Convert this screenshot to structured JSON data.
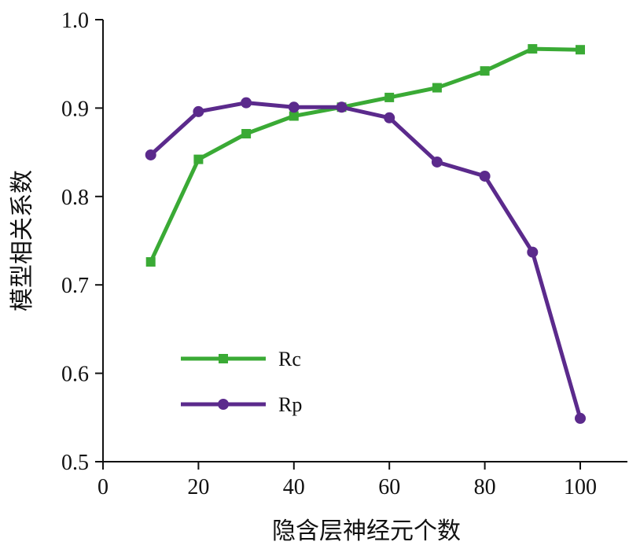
{
  "chart_data": {
    "type": "line",
    "xlabel": "隐含层神经元个数",
    "ylabel": "模型相关系数",
    "xlim": [
      0,
      110
    ],
    "ylim": [
      0.5,
      1.0
    ],
    "x_ticks": [
      "0",
      "20",
      "40",
      "60",
      "80",
      "100"
    ],
    "y_ticks": [
      "0.5",
      "0.6",
      "0.7",
      "0.8",
      "0.9",
      "1.0"
    ],
    "x": [
      10,
      20,
      30,
      40,
      50,
      60,
      70,
      80,
      90,
      100
    ],
    "series": [
      {
        "name": "Rc",
        "color": "#3aaa35",
        "marker": "square",
        "values": [
          0.726,
          0.842,
          0.871,
          0.891,
          0.901,
          0.912,
          0.923,
          0.942,
          0.967,
          0.966
        ]
      },
      {
        "name": "Rp",
        "color": "#5b2a8c",
        "marker": "circle",
        "values": [
          0.847,
          0.896,
          0.906,
          0.901,
          0.901,
          0.889,
          0.839,
          0.823,
          0.737,
          0.549
        ]
      }
    ],
    "grid": false,
    "legend_position": "lower-left"
  }
}
